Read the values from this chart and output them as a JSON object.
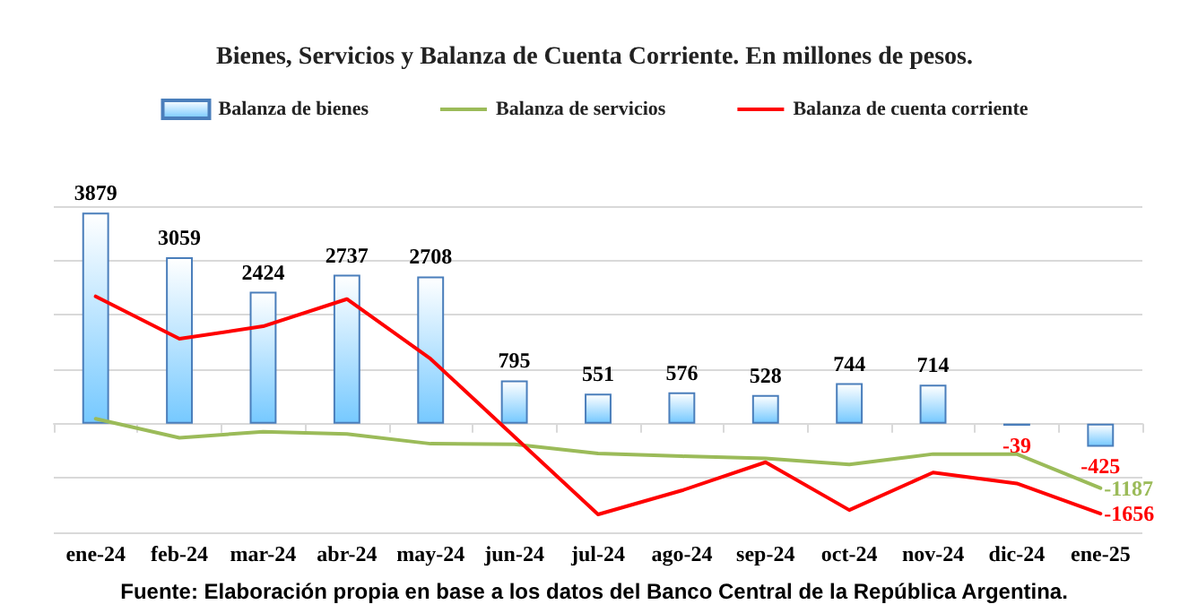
{
  "chart_data": {
    "type": "bar",
    "title": "Bienes, Servicios y Balanza de Cuenta Corriente. En millones de pesos.",
    "categories": [
      "ene-24",
      "feb-24",
      "mar-24",
      "abr-24",
      "may-24",
      "jun-24",
      "jul-24",
      "ago-24",
      "sep-24",
      "oct-24",
      "nov-24",
      "dic-24",
      "ene-25"
    ],
    "series": [
      {
        "name": "Balanza de bienes",
        "color": "#4a7ebb",
        "values": [
          3879,
          3059,
          2424,
          2737,
          2708,
          795,
          551,
          576,
          528,
          744,
          714,
          -39,
          -425
        ],
        "value_labels": [
          "3879",
          "3059",
          "2424",
          "2737",
          "2708",
          "795",
          "551",
          "576",
          "528",
          "744",
          "714",
          "-39",
          "-425"
        ]
      },
      {
        "name": "Balanza de servicios",
        "type": "line",
        "color": "#9bbb59",
        "values": [
          90,
          -260,
          -150,
          -190,
          -370,
          -380,
          -550,
          -600,
          -640,
          -750,
          -560,
          -560,
          -1187
        ],
        "value_labels": [
          null,
          null,
          null,
          null,
          null,
          null,
          null,
          null,
          null,
          null,
          null,
          null,
          "-1187"
        ]
      },
      {
        "name": "Balanza de cuenta corriente",
        "type": "line",
        "color": "#ff0000",
        "values": [
          2340,
          1560,
          1790,
          2290,
          1190,
          -240,
          -1670,
          -1230,
          -710,
          -1590,
          -900,
          -1100,
          -1656
        ],
        "value_labels": [
          null,
          null,
          null,
          null,
          null,
          null,
          null,
          null,
          null,
          null,
          null,
          null,
          "-1656"
        ]
      }
    ],
    "tick_labels": "x",
    "grid": "y",
    "legend": "top",
    "marker": "none",
    "annotations": [
      "Fuente: Elaboración propia en base a los datos del Banco Central de la República Argentina."
    ]
  }
}
